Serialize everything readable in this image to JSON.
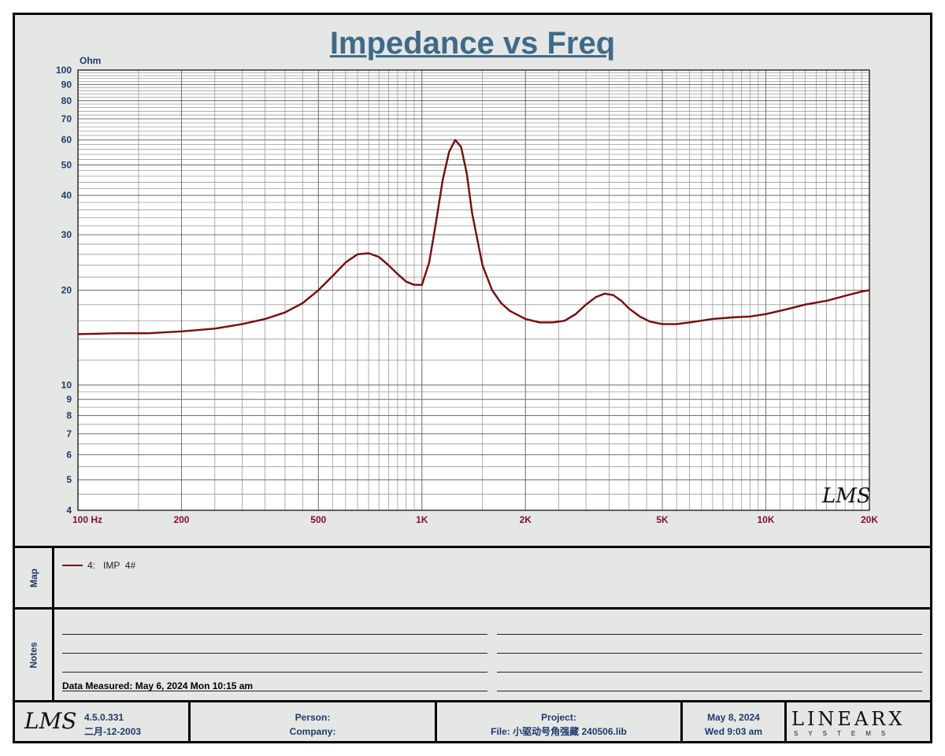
{
  "title": "Impedance vs Freq",
  "chart_data": {
    "type": "line",
    "title": "Impedance vs Freq",
    "xlabel": "",
    "ylabel": "Ohm",
    "xscale": "log",
    "yscale": "log",
    "xlim": [
      100,
      20000
    ],
    "ylim": [
      4,
      100
    ],
    "grid": true,
    "x_ticks": [
      {
        "v": 100,
        "label": "100  Hz"
      },
      {
        "v": 200,
        "label": "200"
      },
      {
        "v": 500,
        "label": "500"
      },
      {
        "v": 1000,
        "label": "1K"
      },
      {
        "v": 2000,
        "label": "2K"
      },
      {
        "v": 5000,
        "label": "5K"
      },
      {
        "v": 10000,
        "label": "10K"
      },
      {
        "v": 20000,
        "label": "20K"
      }
    ],
    "y_ticks": [
      {
        "v": 4,
        "label": "4"
      },
      {
        "v": 5,
        "label": "5"
      },
      {
        "v": 6,
        "label": "6"
      },
      {
        "v": 7,
        "label": "7"
      },
      {
        "v": 8,
        "label": "8"
      },
      {
        "v": 9,
        "label": "9"
      },
      {
        "v": 10,
        "label": "10"
      },
      {
        "v": 20,
        "label": "20"
      },
      {
        "v": 30,
        "label": "30"
      },
      {
        "v": 40,
        "label": "40"
      },
      {
        "v": 50,
        "label": "50"
      },
      {
        "v": 60,
        "label": "60"
      },
      {
        "v": 70,
        "label": "70"
      },
      {
        "v": 80,
        "label": "80"
      },
      {
        "v": 90,
        "label": "90"
      },
      {
        "v": 100,
        "label": "100"
      }
    ],
    "series": [
      {
        "name": "4:   IMP  4#",
        "color": "#7a0a0a",
        "x": [
          100,
          130,
          160,
          200,
          250,
          300,
          350,
          400,
          450,
          500,
          550,
          600,
          650,
          700,
          750,
          800,
          850,
          900,
          950,
          1000,
          1050,
          1100,
          1150,
          1200,
          1250,
          1300,
          1350,
          1400,
          1500,
          1600,
          1700,
          1800,
          2000,
          2200,
          2400,
          2600,
          2800,
          3000,
          3200,
          3400,
          3600,
          3800,
          4000,
          4300,
          4600,
          5000,
          5500,
          6000,
          7000,
          8000,
          9000,
          10000,
          11000,
          12000,
          13000,
          15000,
          17000,
          19000,
          20000
        ],
        "y": [
          14.5,
          14.6,
          14.6,
          14.8,
          15.1,
          15.6,
          16.2,
          17.0,
          18.2,
          20.0,
          22.2,
          24.5,
          26.0,
          26.2,
          25.5,
          24.0,
          22.5,
          21.3,
          20.8,
          20.8,
          24.5,
          33.0,
          45.0,
          55.0,
          60.0,
          57.0,
          47.0,
          35.0,
          24.0,
          20.0,
          18.2,
          17.2,
          16.2,
          15.8,
          15.8,
          16.0,
          16.8,
          18.0,
          19.0,
          19.5,
          19.3,
          18.5,
          17.5,
          16.5,
          15.9,
          15.6,
          15.6,
          15.8,
          16.2,
          16.4,
          16.5,
          16.8,
          17.2,
          17.6,
          18.0,
          18.5,
          19.2,
          19.8,
          20.0
        ]
      }
    ]
  },
  "side_labels": {
    "map": "Map",
    "notes": "Notes"
  },
  "legend": {
    "entry": "4:   IMP  4#"
  },
  "notes": {
    "data_measured": "Data Measured: May  6, 2024  Mon 10:15 am"
  },
  "watermark": "LMS",
  "footer": {
    "logo": "LMS",
    "version": "4.5.0.331",
    "version_date": "二月-12-2003",
    "person_label": "Person:",
    "company_label": "Company:",
    "project_label": "Project:",
    "file_label": "File: 小驱动号角强藏  240506.lib",
    "date": "May  8, 2024",
    "time": "Wed  9:03 am",
    "brand": "LINEARX",
    "brand_sub": "SYSTEMS"
  }
}
